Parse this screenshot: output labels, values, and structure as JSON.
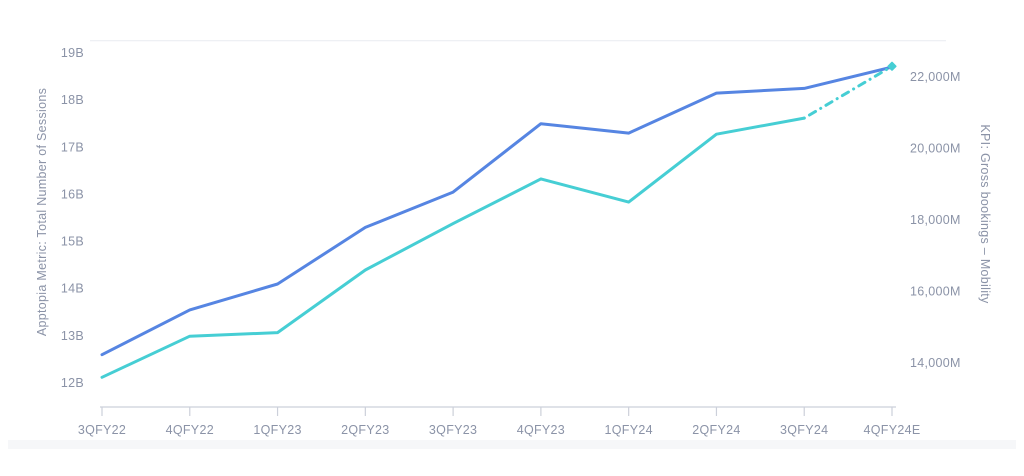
{
  "chart_data": {
    "type": "line",
    "title": "",
    "categories": [
      "3QFY22",
      "4QFY22",
      "1QFY23",
      "2QFY23",
      "3QFY23",
      "4QFY23",
      "1QFY24",
      "2QFY24",
      "3QFY24",
      "4QFY24E"
    ],
    "series": [
      {
        "name": "Apptopia Metric: Total Number of Sessions",
        "axis": "left",
        "color": "#5685e2",
        "line_style": "solid",
        "values": [
          12.6,
          13.55,
          14.1,
          15.3,
          16.05,
          17.5,
          17.3,
          18.15,
          18.25,
          18.7
        ]
      },
      {
        "name": "KPI: Gross bookings – Mobility",
        "axis": "right",
        "color": "#46ced4",
        "line_style": "solid",
        "dashed_from_index": 8,
        "dashed_note": "final segment (3QFY24 to 4QFY24E) drawn as dash-dot estimate",
        "values": [
          13600,
          14750,
          14850,
          16600,
          17900,
          19150,
          18500,
          20400,
          20850,
          22300
        ]
      }
    ],
    "left_axis": {
      "title": "Apptopia Metric: Total Number of Sessions",
      "tick_labels": [
        "19B",
        "18B",
        "17B",
        "16B",
        "15B",
        "14B",
        "13B",
        "12B"
      ],
      "tick_values": [
        19,
        18,
        17,
        16,
        15,
        14,
        13,
        12
      ],
      "range": [
        12,
        19
      ]
    },
    "right_axis": {
      "title": "KPI: Gross bookings – Mobility",
      "tick_labels": [
        "22,000M",
        "20,000M",
        "18,000M",
        "16,000M",
        "14,000M"
      ],
      "tick_values": [
        22000,
        20000,
        18000,
        16000,
        14000
      ],
      "range_shown": [
        14000,
        22000
      ]
    },
    "x_axis": {
      "tick_labels": [
        "3QFY22",
        "4QFY22",
        "1QFY23",
        "2QFY23",
        "3QFY23",
        "4QFY23",
        "1QFY24",
        "2QFY24",
        "3QFY24",
        "4QFY24E"
      ]
    },
    "grid": false,
    "legend": "none"
  },
  "colors": {
    "series_sessions": "#5685e2",
    "series_bookings": "#46ced4",
    "tick_text": "#8b93a7",
    "axis_line": "#ccd0da",
    "bottom_band": "#f6f7f9",
    "plot_border": "#eef0f4"
  }
}
